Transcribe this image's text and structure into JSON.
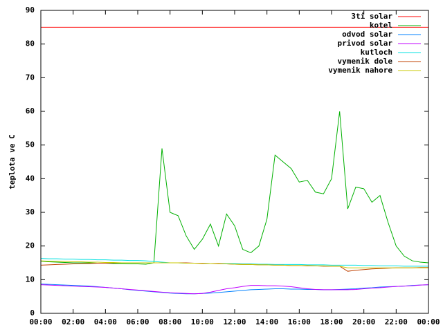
{
  "chart_data": {
    "type": "line",
    "y_label": "teplota ve C",
    "x": [
      0,
      0.5,
      1,
      1.5,
      2,
      2.5,
      3,
      3.5,
      4,
      4.5,
      5,
      5.5,
      6,
      6.5,
      7,
      7.5,
      8,
      8.5,
      9,
      9.5,
      10,
      10.5,
      11,
      11.5,
      12,
      12.5,
      13,
      13.5,
      14,
      14.5,
      15,
      15.5,
      16,
      16.5,
      17,
      17.5,
      18,
      18.5,
      19,
      19.5,
      20,
      20.5,
      21,
      21.5,
      22,
      22.5,
      23,
      23.5,
      24
    ],
    "series": [
      {
        "name": "3ti solar",
        "color": "#ff0000",
        "values": [
          85,
          85,
          85,
          85,
          85,
          85,
          85,
          85,
          85,
          85,
          85,
          85,
          85,
          85,
          85,
          85,
          85,
          85,
          85,
          85,
          85,
          85,
          85,
          85,
          85,
          85,
          85,
          85,
          85,
          85,
          85,
          85,
          85,
          85,
          85,
          85,
          85,
          85,
          85,
          85,
          85,
          85,
          85,
          85,
          85,
          85,
          85,
          85,
          85
        ]
      },
      {
        "name": "kotel",
        "color": "#00b000",
        "values": [
          15.5,
          15.3,
          15.2,
          15.1,
          15,
          15,
          15,
          14.9,
          14.9,
          14.8,
          14.8,
          14.7,
          14.7,
          14.6,
          15,
          49,
          30,
          29,
          23,
          19,
          22,
          26.5,
          20,
          29.5,
          26,
          19,
          18,
          20,
          28,
          47,
          45,
          43,
          39,
          39.5,
          36,
          35.5,
          40,
          60,
          31,
          37.5,
          37,
          33,
          35,
          27,
          20,
          17,
          15.6,
          15.2,
          15
        ]
      },
      {
        "name": "odvod solar",
        "color": "#0080ff",
        "values": [
          8.7,
          8.6,
          8.5,
          8.4,
          8.3,
          8.2,
          8.1,
          7.9,
          7.7,
          7.5,
          7.3,
          7.0,
          6.8,
          6.6,
          6.4,
          6.2,
          6.0,
          5.9,
          5.8,
          5.8,
          5.9,
          6.0,
          6.2,
          6.4,
          6.6,
          6.8,
          7.0,
          7.1,
          7.2,
          7.3,
          7.3,
          7.2,
          7.2,
          7.1,
          7.1,
          7.0,
          7.0,
          7.1,
          7.2,
          7.3,
          7.5,
          7.6,
          7.8,
          7.9,
          8.0,
          8.1,
          8.3,
          8.4,
          8.5
        ]
      },
      {
        "name": "privod solar",
        "color": "#c000ff",
        "values": [
          8.5,
          8.4,
          8.3,
          8.2,
          8.1,
          8.0,
          7.9,
          7.8,
          7.7,
          7.5,
          7.3,
          7.1,
          6.9,
          6.7,
          6.5,
          6.3,
          6.1,
          6.0,
          5.9,
          5.8,
          5.9,
          6.3,
          6.8,
          7.3,
          7.6,
          8.0,
          8.3,
          8.3,
          8.2,
          8.2,
          8.1,
          7.9,
          7.6,
          7.3,
          7.1,
          7.0,
          7.0,
          7.0,
          7.0,
          7.1,
          7.3,
          7.5,
          7.6,
          7.8,
          8.0,
          8.1,
          8.2,
          8.4,
          8.5
        ]
      },
      {
        "name": "kutloch",
        "color": "#00e0e0",
        "values": [
          16.3,
          16.2,
          16.2,
          16.1,
          16.1,
          16.0,
          16.0,
          15.9,
          15.9,
          15.8,
          15.8,
          15.7,
          15.7,
          15.6,
          15.4,
          15.2,
          15.0,
          15.0,
          14.9,
          14.9,
          14.9,
          14.8,
          14.8,
          14.8,
          14.8,
          14.7,
          14.7,
          14.6,
          14.6,
          14.5,
          14.5,
          14.5,
          14.5,
          14.4,
          14.4,
          14.4,
          14.3,
          14.3,
          14.3,
          14.3,
          14.2,
          14.2,
          14.1,
          14.1,
          14.1,
          14.0,
          14.0,
          14.0,
          14.0
        ]
      },
      {
        "name": "vymenik dole",
        "color": "#c04000",
        "values": [
          14.3,
          14.4,
          14.5,
          14.6,
          14.7,
          14.8,
          14.8,
          14.9,
          14.9,
          15.0,
          15.0,
          15.0,
          15.0,
          15.0,
          15.0,
          15.0,
          15.0,
          15.0,
          15.0,
          14.9,
          14.9,
          14.8,
          14.8,
          14.7,
          14.6,
          14.5,
          14.5,
          14.4,
          14.4,
          14.3,
          14.3,
          14.2,
          14.2,
          14.1,
          14.1,
          14.0,
          14.0,
          14.0,
          12.5,
          12.8,
          13.0,
          13.2,
          13.3,
          13.4,
          13.5,
          13.5,
          13.5,
          13.6,
          13.6
        ]
      },
      {
        "name": "vymenik nahore",
        "color": "#c8c800",
        "values": [
          15.6,
          15.5,
          15.5,
          15.4,
          15.3,
          15.3,
          15.2,
          15.2,
          15.1,
          15.1,
          15.0,
          15.0,
          15.0,
          15.0,
          15.0,
          15.0,
          15.0,
          15.0,
          14.9,
          14.9,
          14.8,
          14.8,
          14.7,
          14.7,
          14.6,
          14.5,
          14.5,
          14.4,
          14.4,
          14.3,
          14.3,
          14.2,
          14.2,
          14.2,
          14.1,
          14.1,
          14.0,
          14.0,
          13.5,
          13.5,
          13.5,
          13.5,
          13.5,
          13.5,
          13.5,
          13.5,
          13.5,
          13.5,
          13.5
        ]
      }
    ],
    "xlim": [
      0,
      24
    ],
    "xticks": [
      {
        "value": 0,
        "label": "00:00"
      },
      {
        "value": 2,
        "label": "02:00"
      },
      {
        "value": 4,
        "label": "04:00"
      },
      {
        "value": 6,
        "label": "06:00"
      },
      {
        "value": 8,
        "label": "08:00"
      },
      {
        "value": 10,
        "label": "10:00"
      },
      {
        "value": 12,
        "label": "12:00"
      },
      {
        "value": 14,
        "label": "14:00"
      },
      {
        "value": 16,
        "label": "16:00"
      },
      {
        "value": 18,
        "label": "18:00"
      },
      {
        "value": 20,
        "label": "20:00"
      },
      {
        "value": 22,
        "label": "22:00"
      },
      {
        "value": 24,
        "label": "00:00"
      }
    ],
    "ylim": [
      0,
      90
    ],
    "yticks": [
      0,
      10,
      20,
      30,
      40,
      50,
      60,
      70,
      80,
      90
    ],
    "grid": false,
    "legend": "top-right"
  }
}
